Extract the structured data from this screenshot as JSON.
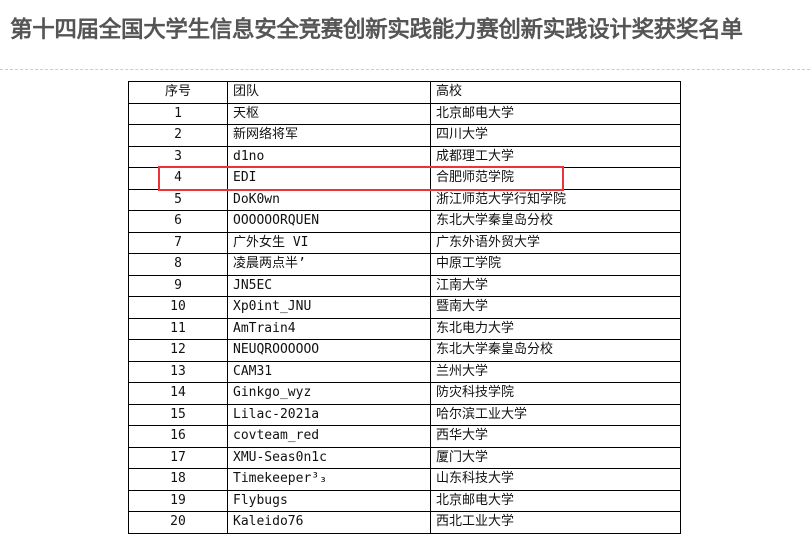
{
  "title": "第十四届全国大学生信息安全竞赛创新实践能力赛创新实践设计奖获奖名单",
  "table": {
    "headers": [
      "序号",
      "团队",
      "高校"
    ],
    "rows": [
      [
        "1",
        "天枢",
        "北京邮电大学"
      ],
      [
        "2",
        "新网络将军",
        "四川大学"
      ],
      [
        "3",
        "d1no",
        "成都理工大学"
      ],
      [
        "4",
        "EDI",
        "合肥师范学院"
      ],
      [
        "5",
        "DoK0wn",
        "浙江师范大学行知学院"
      ],
      [
        "6",
        "OOOOOORQUEN",
        "东北大学秦皇岛分校"
      ],
      [
        "7",
        "广外女生 VI",
        "广东外语外贸大学"
      ],
      [
        "8",
        "凌晨两点半’",
        "中原工学院"
      ],
      [
        "9",
        "JN5EC",
        "江南大学"
      ],
      [
        "10",
        "Xp0int_JNU",
        "暨南大学"
      ],
      [
        "11",
        "AmTrain4",
        "东北电力大学"
      ],
      [
        "12",
        "NEUQROOOOOO",
        "东北大学秦皇岛分校"
      ],
      [
        "13",
        "CAM31",
        "兰州大学"
      ],
      [
        "14",
        "Ginkgo_wyz",
        "防灾科技学院"
      ],
      [
        "15",
        "Lilac-2021a",
        "哈尔滨工业大学"
      ],
      [
        "16",
        "covteam_red",
        "西华大学"
      ],
      [
        "17",
        "XMU-Seas0n1c",
        "厦门大学"
      ],
      [
        "18",
        "Timekeeper³₃",
        "山东科技大学"
      ],
      [
        "19",
        "Flybugs",
        "北京邮电大学"
      ],
      [
        "20",
        "Kaleido76",
        "西北工业大学"
      ]
    ]
  },
  "highlight": {
    "row": "4",
    "color": "#e8343a"
  }
}
